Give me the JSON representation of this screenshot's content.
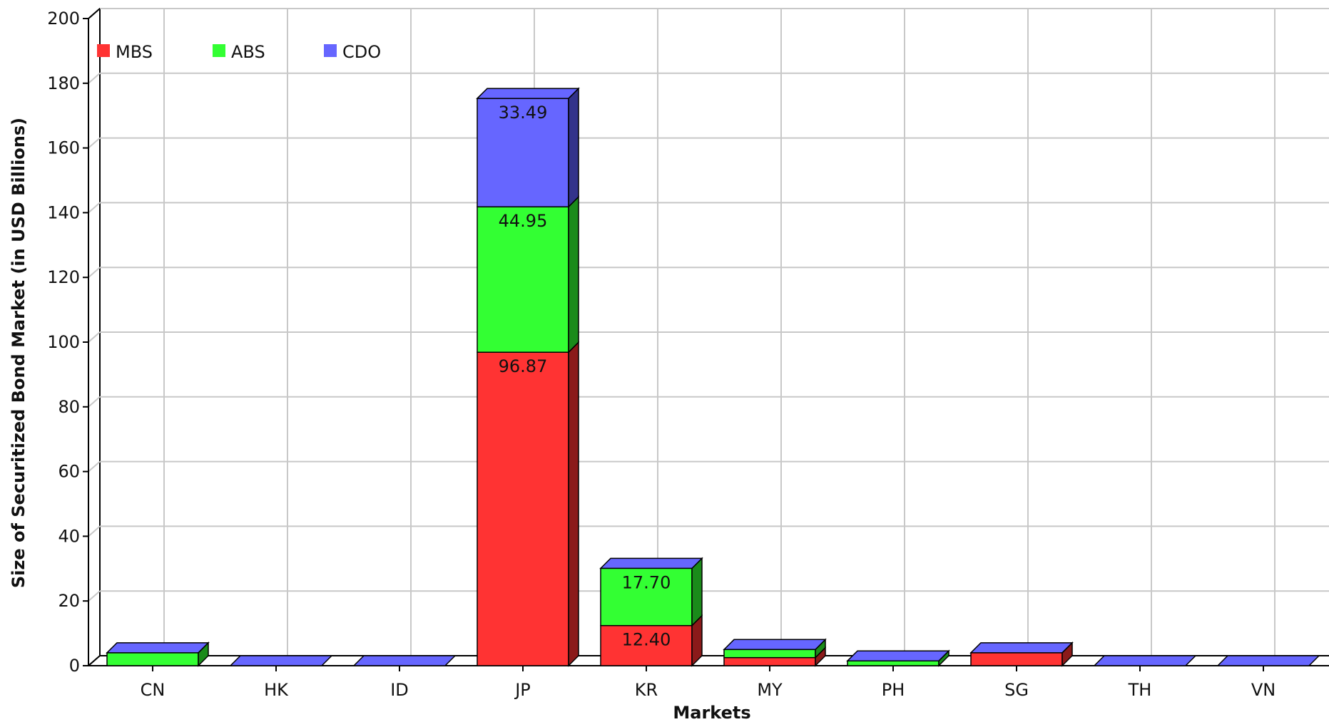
{
  "chart_data": {
    "type": "bar",
    "stacked": true,
    "three_d": true,
    "title": "",
    "xlabel": "Markets",
    "ylabel": "Size of Securitized Bond Market (in USD Billions)",
    "ylim": [
      0,
      200
    ],
    "yticks": [
      0,
      20,
      40,
      60,
      80,
      100,
      120,
      140,
      160,
      180,
      200
    ],
    "grid": true,
    "legend_position": "top-left",
    "categories": [
      "CN",
      "HK",
      "ID",
      "JP",
      "KR",
      "MY",
      "PH",
      "SG",
      "TH",
      "VN"
    ],
    "series": [
      {
        "name": "MBS",
        "color": "#ff3333",
        "side_color": "#8b1a1a",
        "values": [
          0,
          0,
          0,
          96.87,
          12.4,
          2.5,
          0,
          4.0,
          0,
          0
        ]
      },
      {
        "name": "ABS",
        "color": "#33ff33",
        "side_color": "#1a8b1a",
        "values": [
          4.0,
          0,
          0,
          44.95,
          17.7,
          2.5,
          1.5,
          0,
          0,
          0
        ]
      },
      {
        "name": "CDO",
        "color": "#6666ff",
        "side_color": "#33338b",
        "values": [
          0,
          0,
          0,
          33.49,
          0,
          0,
          0,
          0,
          0,
          0
        ]
      }
    ],
    "data_labels": [
      {
        "category": "JP",
        "series": "CDO",
        "text": "33.49"
      },
      {
        "category": "JP",
        "series": "ABS",
        "text": "44.95"
      },
      {
        "category": "JP",
        "series": "MBS",
        "text": "96.87"
      },
      {
        "category": "KR",
        "series": "ABS",
        "text": "17.70"
      },
      {
        "category": "KR",
        "series": "MBS",
        "text": "12.40"
      }
    ]
  }
}
